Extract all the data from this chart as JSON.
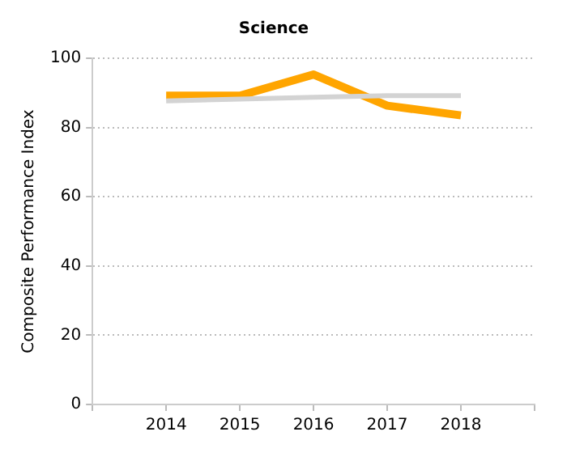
{
  "chart_data": {
    "type": "line",
    "title": "Science",
    "ylabel": "Composite Performance Index",
    "x": [
      2014,
      2015,
      2016,
      2017,
      2018
    ],
    "xlim": [
      2013,
      2019
    ],
    "xticks": [
      {
        "value": 2013,
        "label": null
      },
      2014,
      2015,
      2016,
      2017,
      2018,
      {
        "value": 2019,
        "label": null
      }
    ],
    "ylim": [
      0,
      100
    ],
    "yticks": [
      0,
      20,
      40,
      60,
      80,
      100
    ],
    "grid": "y",
    "legend": false,
    "marker": "none",
    "line_style": "solid",
    "series": [
      {
        "color": "#d3d3d3",
        "values": [
          87.7,
          88.2,
          88.7,
          89.2,
          89.2
        ]
      },
      {
        "color": "#ffa500",
        "values": [
          89.2,
          89.2,
          95.3,
          86.3,
          83.5
        ]
      }
    ]
  }
}
